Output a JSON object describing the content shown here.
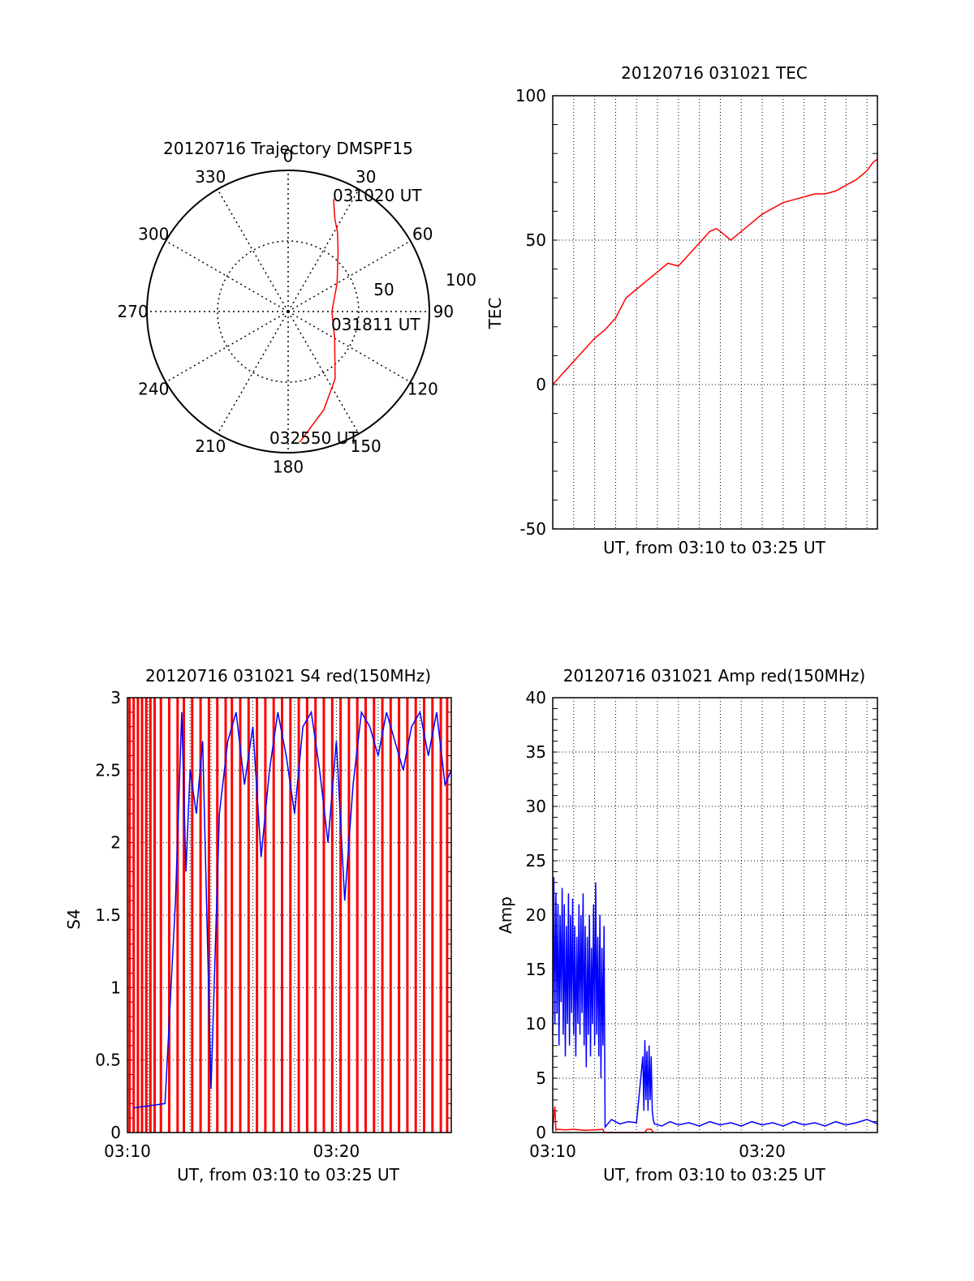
{
  "chart_data": [
    {
      "type": "polar",
      "title": "20120716 Trajectory DMSPF15",
      "azimuth_labels": [
        "0",
        "30",
        "60",
        "90",
        "120",
        "150",
        "180",
        "210",
        "240",
        "270",
        "300",
        "330"
      ],
      "radial_labels": [
        "50",
        "100"
      ],
      "rlim": [
        0,
        100
      ],
      "grid": true,
      "annotations": [
        "031020 UT",
        "031811 UT",
        "032550 UT"
      ],
      "series": [
        {
          "color": "#ff0000",
          "azimuth": [
            22,
            24,
            27,
            32,
            40,
            60,
            90,
            120,
            145,
            160,
            170,
            175
          ],
          "zenith": [
            86,
            80,
            73,
            66,
            55,
            40,
            31,
            38,
            58,
            74,
            85,
            93
          ]
        }
      ]
    },
    {
      "type": "line",
      "title": "20120716 031021 TEC",
      "xlabel": "UT, from 03:10 to 03:25 UT",
      "ylabel": "TEC",
      "yticks": [
        "-50",
        "0",
        "50",
        "100"
      ],
      "ylim": [
        -50,
        100
      ],
      "xlim": [
        0,
        15.5
      ],
      "grid": true,
      "series": [
        {
          "color": "#ff0000",
          "x": [
            0,
            0.5,
            1,
            1.5,
            2,
            2.5,
            3,
            3.5,
            4,
            4.5,
            5,
            5.5,
            6,
            6.5,
            7,
            7.5,
            7.8,
            8,
            8.5,
            9,
            9.5,
            10,
            10.5,
            11,
            11.5,
            12,
            12.5,
            13,
            13.5,
            14,
            14.5,
            15,
            15.3,
            15.5
          ],
          "y": [
            0,
            4,
            8,
            12,
            16,
            19,
            23,
            30,
            33,
            36,
            39,
            42,
            41,
            45,
            49,
            53,
            54,
            53,
            50,
            53,
            56,
            59,
            61,
            63,
            64,
            65,
            66,
            66,
            67,
            69,
            71,
            74,
            77,
            78
          ]
        }
      ]
    },
    {
      "type": "line",
      "title": "20120716 031021 S4 red(150MHz)",
      "xlabel": "UT, from 03:10 to 03:25 UT",
      "ylabel": "S4",
      "xticks": [
        "03:10",
        "03:20"
      ],
      "yticks": [
        "0",
        "0.5",
        "1",
        "1.5",
        "2",
        "2.5",
        "3"
      ],
      "ylim": [
        0,
        3
      ],
      "xlim": [
        0,
        15.5
      ],
      "grid": true,
      "series": [
        {
          "color": "#ff0000",
          "x": [
            0.1,
            0.3,
            0.5,
            0.7,
            0.9,
            1.1,
            1.3,
            1.6,
            2.0,
            2.4,
            2.7,
            3.1,
            3.5,
            3.9,
            4.3,
            4.7,
            5.0,
            5.4,
            5.8,
            6.2,
            6.6,
            7.0,
            7.4,
            7.8,
            8.2,
            8.6,
            9.0,
            9.4,
            9.8,
            10.2,
            10.6,
            11.0,
            11.4,
            11.8,
            12.2,
            12.6,
            13.0,
            13.4,
            13.8,
            14.2,
            14.6,
            15.0,
            15.3
          ],
          "y": [
            3,
            3,
            3,
            3,
            3,
            3,
            3,
            3,
            3,
            3,
            3,
            3,
            3,
            3,
            3,
            3,
            3,
            3,
            3,
            3,
            3,
            3,
            3,
            3,
            3,
            3,
            3,
            3,
            3,
            3,
            3,
            3,
            3,
            3,
            3,
            3,
            3,
            3,
            3,
            3,
            3,
            3,
            3
          ]
        },
        {
          "color": "#0000ff",
          "x": [
            0.3,
            0.8,
            1.3,
            1.8,
            2.3,
            2.6,
            2.8,
            3.0,
            3.3,
            3.6,
            4.0,
            4.4,
            4.8,
            5.2,
            5.6,
            6.0,
            6.4,
            6.8,
            7.2,
            7.6,
            8.0,
            8.4,
            8.8,
            9.2,
            9.6,
            10.0,
            10.4,
            10.8,
            11.2,
            11.6,
            12.0,
            12.4,
            12.8,
            13.2,
            13.6,
            14.0,
            14.4,
            14.8,
            15.2,
            15.5
          ],
          "y": [
            0.17,
            0.18,
            0.19,
            0.2,
            1.6,
            2.9,
            1.8,
            2.5,
            2.2,
            2.7,
            0.3,
            2.2,
            2.7,
            2.9,
            2.4,
            2.8,
            1.9,
            2.5,
            2.9,
            2.6,
            2.2,
            2.8,
            2.9,
            2.5,
            2.0,
            2.7,
            1.6,
            2.4,
            2.9,
            2.8,
            2.6,
            2.9,
            2.7,
            2.5,
            2.8,
            2.9,
            2.6,
            2.9,
            2.4,
            2.5
          ]
        }
      ]
    },
    {
      "type": "line",
      "title": "20120716 031021 Amp red(150MHz)",
      "xlabel": "UT, from 03:10 to 03:25 UT",
      "ylabel": "Amp",
      "xticks": [
        "03:10",
        "03:20"
      ],
      "yticks": [
        "0",
        "5",
        "10",
        "15",
        "20",
        "25",
        "30",
        "35",
        "40"
      ],
      "ylim": [
        0,
        40
      ],
      "xlim": [
        0,
        15.5
      ],
      "grid": true,
      "series": [
        {
          "color": "#ff0000",
          "x": [
            0,
            0.1,
            0.15,
            0.2,
            0.6,
            1.0,
            1.5,
            2.0,
            2.4,
            2.45,
            2.5,
            4.4,
            4.5,
            4.7,
            4.8
          ],
          "y": [
            0.3,
            2.4,
            0.2,
            0.3,
            0.25,
            0.3,
            0.2,
            0.25,
            0.3,
            0,
            0,
            0,
            0.3,
            0.3,
            0
          ]
        },
        {
          "color": "#0000ff",
          "x": [
            0,
            0.05,
            0.1,
            0.15,
            0.2,
            0.25,
            0.3,
            0.35,
            0.4,
            0.45,
            0.5,
            0.55,
            0.6,
            0.65,
            0.7,
            0.75,
            0.8,
            0.85,
            0.9,
            0.95,
            1.0,
            1.05,
            1.1,
            1.15,
            1.2,
            1.25,
            1.3,
            1.35,
            1.4,
            1.45,
            1.5,
            1.55,
            1.6,
            1.65,
            1.7,
            1.75,
            1.8,
            1.85,
            1.9,
            1.95,
            2.0,
            2.05,
            2.1,
            2.15,
            2.2,
            2.25,
            2.3,
            2.35,
            2.4,
            2.45,
            2.5,
            2.8,
            3.2,
            3.6,
            4.0,
            4.3,
            4.35,
            4.4,
            4.45,
            4.5,
            4.55,
            4.6,
            4.65,
            4.7,
            4.75,
            4.8,
            4.85,
            5.2,
            5.6,
            6.0,
            6.5,
            7.0,
            7.5,
            8.0,
            8.5,
            9.0,
            9.5,
            10.0,
            10.5,
            11.0,
            11.5,
            12.0,
            12.5,
            13.0,
            13.5,
            14.0,
            14.5,
            15.0,
            15.5
          ],
          "y": [
            9,
            23.5,
            10,
            22,
            11,
            21,
            8,
            20,
            12,
            22.5,
            9,
            21,
            7,
            19,
            10,
            22,
            8,
            20,
            11,
            21.5,
            9,
            19,
            7,
            18,
            10,
            21,
            9,
            20,
            11,
            22,
            8,
            19,
            6,
            18,
            9,
            20,
            7,
            17,
            10,
            21,
            8,
            23,
            9,
            18,
            7,
            20,
            5,
            17,
            8,
            19,
            0.5,
            1.2,
            0.8,
            1.0,
            0.9,
            7,
            2,
            8.5,
            3,
            7.5,
            2,
            8,
            3,
            7,
            2,
            1.2,
            0.8,
            0.6,
            1.0,
            0.7,
            0.9,
            0.6,
            1.0,
            0.7,
            0.9,
            0.6,
            1.0,
            0.7,
            0.9,
            0.6,
            1.0,
            0.7,
            0.9,
            0.6,
            1.0,
            0.7,
            0.9,
            1.2,
            0.8
          ]
        }
      ]
    }
  ]
}
